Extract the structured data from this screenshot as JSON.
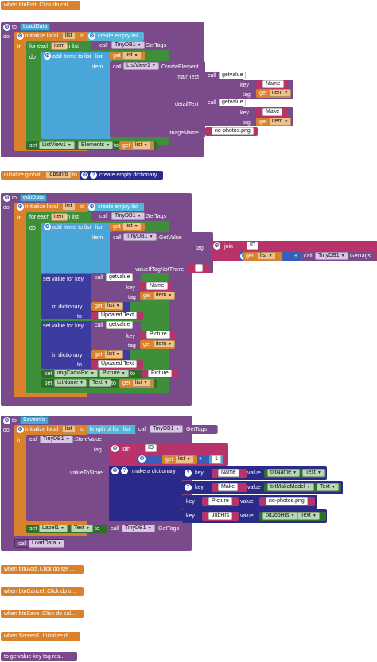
{
  "events": {
    "btnEdit_click": "when  btnEdit .Click do cal...",
    "btnAdd_click": "when  btnAdd .Click do set ...",
    "btnCancel_click": "when  btnCancel .Click do s...",
    "btnSave_click": "when  btnSave .Click do cal...",
    "screen1_init": "when  Screen1 .Initialize d...",
    "getvalue_proc": "to getvalue  key  tag res..."
  },
  "loaddata": {
    "to": "to",
    "name": "LoadData",
    "do": "do",
    "init_local": "initialize local",
    "var": "list",
    "to2": "to",
    "create_empty_list": "create empty list",
    "in": "in",
    "for_each": "for each",
    "item": "item",
    "in_list": "in list",
    "call": "call",
    "tinydb": "TinyDB1",
    "gettags": "GetTags",
    "do2": "do",
    "add_items": "add items to list",
    "list_lbl": "list",
    "get": "get",
    "get_list": "list",
    "item_lbl": "item",
    "listview": "ListView1",
    "create_element": "CreateElement",
    "maintext": "mainText",
    "detailtext": "detailText",
    "imagename": "imageName",
    "getvalue": "getvalue",
    "key": "key",
    "tag": "tag",
    "name_str": "Name",
    "make_str": "Make",
    "get_item": "item",
    "no_photos": "no-photos.png",
    "set": "set",
    "elements": "Elements",
    "to3": "to"
  },
  "global": {
    "init_global": "initialize global",
    "var": "jobsInfo",
    "to": "to",
    "create_dict": "create empty dictionary"
  },
  "editdata": {
    "to": "to",
    "name": "editData",
    "do": "do",
    "init_local": "initialize local",
    "var": "list",
    "to2": "to",
    "create_empty_list": "create empty list",
    "in": "in",
    "for_each": "for each",
    "item": "item",
    "in_list": "in list",
    "call": "call",
    "tinydb": "TinyDB1",
    "gettags": "GetTags",
    "do2": "do",
    "add_items": "add items to list",
    "list_lbl": "list",
    "get": "get",
    "get_list": "list",
    "item_lbl": "item",
    "getvalue_m": ".GetValue",
    "tag": "tag",
    "join": "join",
    "id_str": "ID",
    "plus": "+",
    "value_if": "valueIfTagNotThere",
    "empty_str": "",
    "set_value_for_key": "set value for key",
    "getvalue": "getvalue",
    "key": "key",
    "name_str": "Name",
    "get_item": "item",
    "in_dict": "in dictionary",
    "get_list2": "list",
    "to4": "to",
    "updated_text": "Updated Text",
    "picture_str": "Picture",
    "set": "set",
    "imgcamapic": "imgCamaPic",
    "picture_prop": "Picture",
    "to5": "to",
    "txtname": "txtName",
    "text_prop": "Text"
  },
  "saveinfo": {
    "to": "to",
    "name": "SaveInfo",
    "do": "do",
    "init_local": "initialize local",
    "var": "list",
    "to2": "to",
    "length_of_list": "length of list",
    "list_lbl": "list",
    "call": "call",
    "tinydb": "TinyDB1",
    "gettags": "GetTags",
    "in": "in",
    "storevalue": ".StoreValue",
    "tag": "tag",
    "join": "join",
    "id_str": "ID",
    "get": "get",
    "get_list": "list",
    "plus": "+",
    "one": "1",
    "value_to_store": "valueToStore",
    "make_dict": "make a dictionary",
    "key": "key",
    "value": "value",
    "name_str": "Name",
    "txtname": "txtName",
    "text_prop": "Text",
    "make_str": "Make",
    "txtmakemodel": "txtMakeModel",
    "picture_str": "Picture",
    "no_photos": "no-photos.png",
    "jobhrs_str": "JobHrs",
    "txtjobhrs": "txtJobHrs",
    "set": "set",
    "label1": "Label1",
    "to3": "to",
    "call2": "call",
    "loaddata": "LoadData"
  }
}
